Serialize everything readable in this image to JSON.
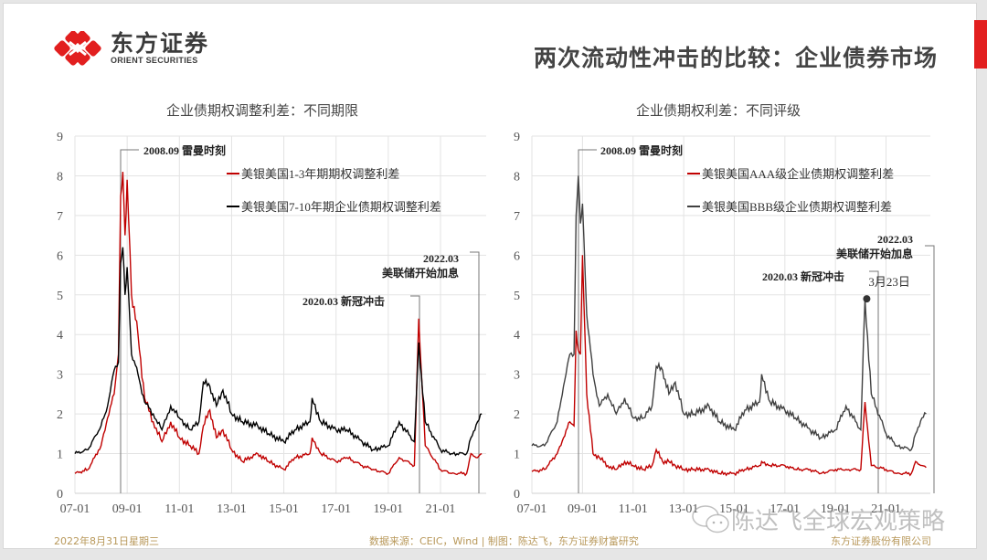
{
  "header": {
    "logo_cn": "东方证券",
    "logo_en": "ORIENT SECURITIES",
    "title": "两次流动性冲击的比较：企业债券市场",
    "brand_color": "#e21f1f"
  },
  "footer": {
    "date": "2022年8月31日星期三",
    "source": "数据来源：CEIC，Wind | 制图：陈达飞，东方证券财富研究",
    "company": "东方证券股份有限公司"
  },
  "watermark": {
    "text": "陈达飞全球宏观策略"
  },
  "chart_data": [
    {
      "type": "line",
      "title": "企业债期权调整利差：不同期限",
      "xlabel": "",
      "ylabel": "",
      "ylim": [
        0,
        9
      ],
      "yticks": [
        "0",
        "1",
        "2",
        "3",
        "4",
        "5",
        "6",
        "7",
        "8",
        "9"
      ],
      "xticks": [
        "07-01",
        "09-01",
        "11-01",
        "13-01",
        "15-01",
        "17-01",
        "19-01",
        "21-01"
      ],
      "grid": true,
      "legend_position": "upper right inside",
      "annotations": [
        {
          "text": "2008.09 雷曼时刻",
          "x": "2008-09"
        },
        {
          "text": "2020.03 新冠冲击",
          "x": "2020-03"
        },
        {
          "text": "2022.03 美联储开始加息",
          "x": "2022-03"
        }
      ],
      "x": [
        "2007-01",
        "2007-07",
        "2008-01",
        "2008-04",
        "2008-07",
        "2008-09",
        "2008-10",
        "2008-11",
        "2008-12",
        "2009-01",
        "2009-03",
        "2009-06",
        "2009-09",
        "2010-01",
        "2010-05",
        "2010-09",
        "2011-01",
        "2011-06",
        "2011-10",
        "2011-12",
        "2012-03",
        "2012-06",
        "2012-09",
        "2013-01",
        "2013-06",
        "2014-01",
        "2014-06",
        "2015-01",
        "2015-06",
        "2016-01",
        "2016-02",
        "2016-06",
        "2017-01",
        "2017-06",
        "2018-01",
        "2018-06",
        "2019-01",
        "2019-06",
        "2020-01",
        "2020-03",
        "2020-06",
        "2021-01",
        "2021-06",
        "2022-01",
        "2022-03",
        "2022-06",
        "2022-08"
      ],
      "series": [
        {
          "name": "美银美国1-3年期期权调整利差",
          "color": "#c00000",
          "values": [
            0.5,
            0.6,
            1.2,
            1.9,
            2.5,
            3.5,
            7.5,
            8.1,
            6.5,
            7.9,
            5.0,
            4.0,
            2.4,
            1.8,
            1.3,
            1.8,
            1.4,
            1.2,
            1.0,
            1.7,
            2.1,
            1.4,
            1.6,
            1.1,
            0.8,
            1.0,
            0.8,
            0.6,
            0.9,
            1.0,
            1.4,
            1.0,
            0.8,
            0.9,
            0.7,
            0.6,
            0.5,
            0.9,
            0.7,
            4.4,
            1.2,
            0.6,
            0.5,
            0.5,
            1.0,
            0.9,
            1.0
          ]
        },
        {
          "name": "美银美国7-10年期企业债期权调整利差",
          "color": "#000000",
          "values": [
            1.0,
            1.1,
            1.7,
            2.2,
            3.1,
            3.3,
            5.8,
            6.2,
            5.0,
            5.7,
            3.5,
            3.0,
            2.3,
            2.0,
            1.6,
            2.2,
            1.9,
            1.6,
            1.8,
            2.8,
            2.7,
            2.2,
            2.6,
            2.0,
            1.8,
            1.7,
            1.5,
            1.3,
            1.6,
            1.8,
            2.4,
            1.8,
            1.6,
            1.6,
            1.3,
            1.1,
            1.2,
            1.8,
            1.3,
            3.8,
            1.8,
            1.1,
            1.0,
            1.0,
            1.4,
            1.8,
            2.0
          ]
        }
      ]
    },
    {
      "type": "line",
      "title": "企业债期权利差：不同评级",
      "xlabel": "",
      "ylabel": "",
      "ylim": [
        0,
        9
      ],
      "yticks": [
        "0",
        "1",
        "2",
        "3",
        "4",
        "5",
        "6",
        "7",
        "8",
        "9"
      ],
      "xticks": [
        "07-01",
        "09-01",
        "11-01",
        "13-01",
        "15-01",
        "17-01",
        "19-01",
        "21-01"
      ],
      "grid": true,
      "legend_position": "upper right inside",
      "annotations": [
        {
          "text": "2008.09 雷曼时刻",
          "x": "2008-09"
        },
        {
          "text": "2020.03 新冠冲击",
          "x": "2020-03"
        },
        {
          "text": "2022.03 美联储开始加息",
          "x": "2022-03"
        },
        {
          "text": "3月23日",
          "x": "2020-03-23",
          "y": 4.9,
          "marker": "dot"
        }
      ],
      "x": [
        "2007-01",
        "2007-07",
        "2008-01",
        "2008-04",
        "2008-07",
        "2008-09",
        "2008-10",
        "2008-11",
        "2008-12",
        "2009-01",
        "2009-03",
        "2009-06",
        "2009-09",
        "2010-01",
        "2010-05",
        "2010-09",
        "2011-01",
        "2011-06",
        "2011-10",
        "2011-12",
        "2012-03",
        "2012-06",
        "2012-09",
        "2013-01",
        "2013-06",
        "2014-01",
        "2014-06",
        "2015-01",
        "2015-06",
        "2016-01",
        "2016-02",
        "2016-06",
        "2017-01",
        "2017-06",
        "2018-01",
        "2018-06",
        "2019-01",
        "2019-06",
        "2020-01",
        "2020-03",
        "2020-06",
        "2021-01",
        "2021-06",
        "2022-01",
        "2022-03",
        "2022-06",
        "2022-08"
      ],
      "series": [
        {
          "name": "美银美国AAA级企业债期权调整利差",
          "color": "#c00000",
          "values": [
            0.55,
            0.6,
            1.0,
            1.4,
            1.8,
            1.7,
            4.1,
            3.6,
            3.5,
            6.0,
            2.5,
            1.0,
            0.9,
            0.7,
            0.6,
            0.8,
            0.7,
            0.6,
            0.7,
            1.1,
            0.8,
            0.8,
            0.7,
            0.6,
            0.6,
            0.6,
            0.5,
            0.5,
            0.6,
            0.7,
            0.8,
            0.7,
            0.7,
            0.6,
            0.6,
            0.5,
            0.6,
            0.6,
            0.6,
            2.3,
            0.7,
            0.6,
            0.5,
            0.5,
            0.8,
            0.7,
            0.65
          ]
        },
        {
          "name": "美银美国BBB级企业债期权调整利差",
          "color": "#404040",
          "values": [
            1.2,
            1.2,
            1.8,
            2.7,
            3.5,
            3.5,
            7.0,
            8.0,
            6.8,
            7.3,
            4.5,
            3.0,
            2.2,
            2.5,
            2.0,
            2.4,
            1.9,
            1.9,
            2.2,
            3.2,
            3.1,
            2.5,
            2.8,
            2.0,
            2.0,
            2.2,
            1.8,
            1.6,
            2.1,
            2.3,
            3.0,
            2.3,
            2.1,
            1.9,
            1.6,
            1.4,
            1.6,
            2.2,
            1.6,
            4.9,
            2.5,
            1.5,
            1.2,
            1.1,
            1.5,
            1.9,
            2.0
          ]
        }
      ]
    }
  ]
}
